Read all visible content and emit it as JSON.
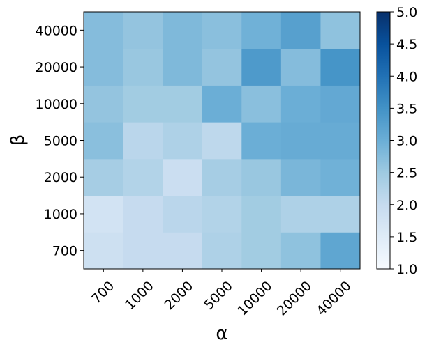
{
  "chart_data": {
    "type": "heatmap",
    "title": "",
    "xlabel": "α",
    "ylabel": "β",
    "x_categories": [
      "700",
      "1000",
      "2000",
      "5000",
      "10000",
      "20000",
      "40000"
    ],
    "y_categories": [
      "700",
      "1000",
      "2000",
      "5000",
      "10000",
      "20000",
      "40000"
    ],
    "values": [
      [
        1.85,
        2.0,
        2.0,
        2.3,
        2.45,
        2.65,
        3.15
      ],
      [
        1.75,
        2.0,
        2.15,
        2.25,
        2.45,
        2.3,
        2.3
      ],
      [
        2.4,
        2.25,
        1.9,
        2.4,
        2.55,
        2.85,
        2.95
      ],
      [
        2.7,
        2.15,
        2.3,
        2.1,
        3.0,
        3.05,
        3.05
      ],
      [
        2.6,
        2.45,
        2.45,
        3.0,
        2.7,
        3.0,
        3.1
      ],
      [
        2.75,
        2.55,
        2.8,
        2.6,
        3.35,
        2.75,
        3.45
      ],
      [
        2.75,
        2.6,
        2.8,
        2.7,
        2.95,
        3.25,
        2.65
      ]
    ],
    "colorbar": {
      "min": 1.0,
      "max": 5.0,
      "ticks": [
        "1.0",
        "1.5",
        "2.0",
        "2.5",
        "3.0",
        "3.5",
        "4.0",
        "4.5",
        "5.0"
      ],
      "colormap": "Blues"
    },
    "grid": false
  }
}
